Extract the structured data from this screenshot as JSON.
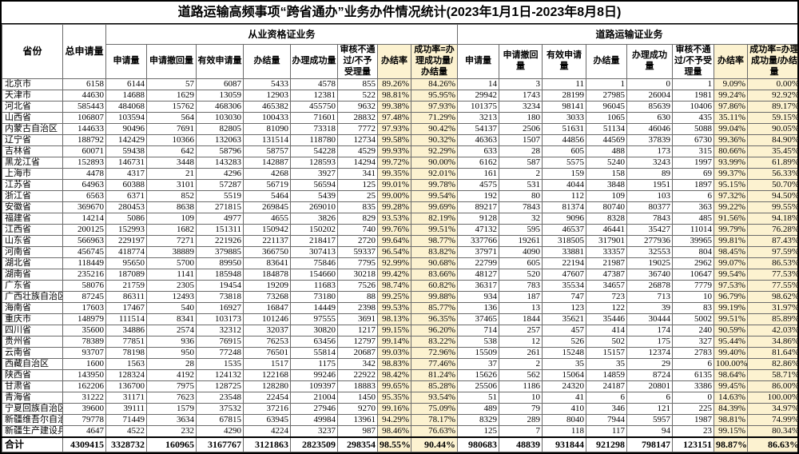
{
  "title": "道路运输高频事项“跨省通办”业务办件情况统计(2023年1月1日-2023年8月8日)",
  "colors": {
    "highlight": "#fcf2d0",
    "grid": "#6b6b6b",
    "outer_border": "#000000"
  },
  "header": {
    "province": "省份",
    "total": "总申请量",
    "group_left": "从业资格证业务",
    "group_right": "道路运输证业务",
    "sub": [
      "申请量",
      "申请撤回量",
      "有效申请量",
      "办结量",
      "办理成功量",
      "审核不通过/不予受理量",
      "办结率",
      "成功率=办理成功量/办结量"
    ]
  },
  "rows": [
    {
      "province": "北京市",
      "total": "6158",
      "qualification": [
        "6144",
        "57",
        "6087",
        "5433",
        "4578",
        "855",
        "89.26%",
        "84.26%"
      ],
      "transport": [
        "14",
        "3",
        "11",
        "1",
        "0",
        "1",
        "9.09%",
        "0.00%"
      ]
    },
    {
      "province": "天津市",
      "total": "44630",
      "qualification": [
        "14688",
        "1629",
        "13059",
        "12903",
        "12381",
        "522",
        "98.81%",
        "95.95%"
      ],
      "transport": [
        "29942",
        "1743",
        "28199",
        "27985",
        "26004",
        "1981",
        "99.24%",
        "92.92%"
      ]
    },
    {
      "province": "河北省",
      "total": "585443",
      "qualification": [
        "484068",
        "15762",
        "468306",
        "465382",
        "455750",
        "9632",
        "99.38%",
        "97.93%"
      ],
      "transport": [
        "101375",
        "3234",
        "98141",
        "96045",
        "85639",
        "10406",
        "97.86%",
        "89.17%"
      ]
    },
    {
      "province": "山西省",
      "total": "106807",
      "qualification": [
        "103594",
        "564",
        "103030",
        "100433",
        "71601",
        "28832",
        "97.48%",
        "71.29%"
      ],
      "transport": [
        "3213",
        "180",
        "3033",
        "1065",
        "630",
        "435",
        "35.11%",
        "59.15%"
      ]
    },
    {
      "province": "内蒙古自治区",
      "total": "144633",
      "qualification": [
        "90496",
        "7691",
        "82805",
        "81090",
        "73318",
        "7772",
        "97.93%",
        "90.42%"
      ],
      "transport": [
        "54137",
        "2506",
        "51631",
        "51134",
        "46046",
        "5088",
        "99.04%",
        "90.05%"
      ]
    },
    {
      "province": "辽宁省",
      "total": "188792",
      "qualification": [
        "142429",
        "10366",
        "132063",
        "131514",
        "118780",
        "12734",
        "99.58%",
        "90.32%"
      ],
      "transport": [
        "46363",
        "1507",
        "44856",
        "44569",
        "37839",
        "6730",
        "99.36%",
        "84.90%"
      ]
    },
    {
      "province": "吉林省",
      "total": "60071",
      "qualification": [
        "59438",
        "642",
        "58796",
        "58757",
        "54228",
        "4529",
        "99.93%",
        "92.29%"
      ],
      "transport": [
        "633",
        "28",
        "605",
        "488",
        "173",
        "315",
        "80.66%",
        "35.45%"
      ]
    },
    {
      "province": "黑龙江省",
      "total": "152893",
      "qualification": [
        "146731",
        "3448",
        "143283",
        "142887",
        "128593",
        "14294",
        "99.72%",
        "90.00%"
      ],
      "transport": [
        "6162",
        "587",
        "5575",
        "5240",
        "3243",
        "1997",
        "93.99%",
        "61.89%"
      ]
    },
    {
      "province": "上海市",
      "total": "4478",
      "qualification": [
        "4317",
        "21",
        "4296",
        "4268",
        "3927",
        "341",
        "99.35%",
        "92.01%"
      ],
      "transport": [
        "161",
        "2",
        "159",
        "158",
        "89",
        "69",
        "99.37%",
        "56.33%"
      ]
    },
    {
      "province": "江苏省",
      "total": "64963",
      "qualification": [
        "60388",
        "3101",
        "57287",
        "56719",
        "56594",
        "125",
        "99.01%",
        "99.78%"
      ],
      "transport": [
        "4575",
        "531",
        "4044",
        "3848",
        "1951",
        "1897",
        "95.15%",
        "50.70%"
      ]
    },
    {
      "province": "浙江省",
      "total": "6563",
      "qualification": [
        "6371",
        "852",
        "5519",
        "5464",
        "5439",
        "25",
        "99.00%",
        "99.54%"
      ],
      "transport": [
        "192",
        "80",
        "112",
        "109",
        "103",
        "6",
        "97.32%",
        "94.50%"
      ]
    },
    {
      "province": "安徽省",
      "total": "369670",
      "qualification": [
        "280453",
        "8638",
        "271815",
        "269845",
        "269010",
        "835",
        "99.28%",
        "99.69%"
      ],
      "transport": [
        "89217",
        "7843",
        "81374",
        "80740",
        "80377",
        "363",
        "99.22%",
        "99.55%"
      ]
    },
    {
      "province": "福建省",
      "total": "14214",
      "qualification": [
        "5086",
        "109",
        "4977",
        "4655",
        "3826",
        "829",
        "93.53%",
        "82.19%"
      ],
      "transport": [
        "9128",
        "32",
        "9096",
        "8328",
        "7843",
        "485",
        "91.56%",
        "94.18%"
      ]
    },
    {
      "province": "江西省",
      "total": "200125",
      "qualification": [
        "152993",
        "1682",
        "151311",
        "150942",
        "150202",
        "740",
        "99.76%",
        "99.51%"
      ],
      "transport": [
        "47132",
        "595",
        "46537",
        "46441",
        "35427",
        "11014",
        "99.79%",
        "76.28%"
      ]
    },
    {
      "province": "山东省",
      "total": "566963",
      "qualification": [
        "229197",
        "7271",
        "221926",
        "221137",
        "218417",
        "2720",
        "99.64%",
        "98.77%"
      ],
      "transport": [
        "337766",
        "19261",
        "318505",
        "317901",
        "277936",
        "39965",
        "99.81%",
        "87.43%"
      ]
    },
    {
      "province": "河南省",
      "total": "456745",
      "qualification": [
        "418774",
        "38889",
        "379885",
        "366750",
        "307413",
        "59337",
        "96.54%",
        "83.82%"
      ],
      "transport": [
        "37971",
        "4090",
        "33881",
        "33357",
        "32553",
        "804",
        "98.45%",
        "97.59%"
      ]
    },
    {
      "province": "湖北省",
      "total": "118449",
      "qualification": [
        "95650",
        "5700",
        "89950",
        "83641",
        "75846",
        "7795",
        "92.99%",
        "90.68%"
      ],
      "transport": [
        "22799",
        "605",
        "22194",
        "21987",
        "19025",
        "2962",
        "99.07%",
        "86.53%"
      ]
    },
    {
      "province": "湖南省",
      "total": "235216",
      "qualification": [
        "187089",
        "1141",
        "185948",
        "184878",
        "154660",
        "30218",
        "99.42%",
        "83.66%"
      ],
      "transport": [
        "48127",
        "520",
        "47607",
        "47387",
        "36740",
        "10647",
        "99.54%",
        "77.53%"
      ]
    },
    {
      "province": "广东省",
      "total": "58076",
      "qualification": [
        "21759",
        "2305",
        "19454",
        "19209",
        "11683",
        "7526",
        "98.74%",
        "60.82%"
      ],
      "transport": [
        "36317",
        "783",
        "35534",
        "34657",
        "26878",
        "7779",
        "97.53%",
        "77.55%"
      ]
    },
    {
      "province": "广西壮族自治区",
      "total": "87245",
      "qualification": [
        "86311",
        "12493",
        "73818",
        "73268",
        "73180",
        "88",
        "99.25%",
        "99.88%"
      ],
      "transport": [
        "934",
        "187",
        "747",
        "723",
        "713",
        "10",
        "96.79%",
        "98.62%"
      ]
    },
    {
      "province": "海南省",
      "total": "17603",
      "qualification": [
        "17467",
        "540",
        "16927",
        "16847",
        "14449",
        "2398",
        "99.53%",
        "85.77%"
      ],
      "transport": [
        "136",
        "13",
        "123",
        "122",
        "39",
        "83",
        "99.19%",
        "31.97%"
      ]
    },
    {
      "province": "重庆市",
      "total": "148979",
      "qualification": [
        "111514",
        "8341",
        "103173",
        "101246",
        "97555",
        "3691",
        "98.13%",
        "96.35%"
      ],
      "transport": [
        "37465",
        "1844",
        "35621",
        "35446",
        "30444",
        "5002",
        "99.51%",
        "85.89%"
      ]
    },
    {
      "province": "四川省",
      "total": "35600",
      "qualification": [
        "34886",
        "2574",
        "32312",
        "32037",
        "30820",
        "1217",
        "99.15%",
        "96.20%"
      ],
      "transport": [
        "714",
        "257",
        "457",
        "414",
        "174",
        "240",
        "90.59%",
        "42.03%"
      ]
    },
    {
      "province": "贵州省",
      "total": "78389",
      "qualification": [
        "77851",
        "936",
        "76915",
        "76253",
        "63456",
        "12797",
        "99.14%",
        "83.22%"
      ],
      "transport": [
        "538",
        "12",
        "526",
        "502",
        "175",
        "327",
        "95.44%",
        "34.86%"
      ]
    },
    {
      "province": "云南省",
      "total": "93707",
      "qualification": [
        "78198",
        "950",
        "77248",
        "76501",
        "55814",
        "20687",
        "99.03%",
        "72.96%"
      ],
      "transport": [
        "15509",
        "261",
        "15248",
        "15157",
        "12374",
        "2783",
        "99.40%",
        "81.64%"
      ]
    },
    {
      "province": "西藏自治区",
      "total": "1600",
      "qualification": [
        "1563",
        "28",
        "1535",
        "1517",
        "1175",
        "342",
        "98.83%",
        "77.46%"
      ],
      "transport": [
        "37",
        "2",
        "35",
        "35",
        "29",
        "6",
        "100.00%",
        "82.86%"
      ]
    },
    {
      "province": "陕西省",
      "total": "143950",
      "qualification": [
        "128324",
        "4192",
        "124132",
        "122168",
        "99246",
        "22922",
        "98.42%",
        "81.24%"
      ],
      "transport": [
        "15626",
        "562",
        "15064",
        "14859",
        "8724",
        "6135",
        "98.64%",
        "58.71%"
      ]
    },
    {
      "province": "甘肃省",
      "total": "162206",
      "qualification": [
        "136700",
        "7975",
        "128725",
        "128280",
        "109397",
        "18883",
        "99.65%",
        "85.28%"
      ],
      "transport": [
        "25506",
        "1186",
        "24320",
        "24187",
        "20801",
        "3386",
        "99.45%",
        "86.00%"
      ]
    },
    {
      "province": "青海省",
      "total": "31222",
      "qualification": [
        "31171",
        "7623",
        "23548",
        "22454",
        "21004",
        "1450",
        "95.35%",
        "93.54%"
      ],
      "transport": [
        "51",
        "10",
        "41",
        "6",
        "6",
        "0",
        "14.63%",
        "100.00%"
      ]
    },
    {
      "province": "宁夏回族自治区",
      "total": "39600",
      "qualification": [
        "39111",
        "1579",
        "37532",
        "37216",
        "27946",
        "9270",
        "99.16%",
        "75.09%"
      ],
      "transport": [
        "489",
        "79",
        "410",
        "346",
        "121",
        "225",
        "84.39%",
        "34.97%"
      ]
    },
    {
      "province": "新疆维吾尔自治区",
      "total": "79778",
      "qualification": [
        "71449",
        "3634",
        "67815",
        "63945",
        "49984",
        "13961",
        "94.29%",
        "78.17%"
      ],
      "transport": [
        "8329",
        "289",
        "8040",
        "7944",
        "5957",
        "1987",
        "98.81%",
        "74.99%"
      ]
    },
    {
      "province": "新疆生产建设兵团",
      "total": "4647",
      "qualification": [
        "4522",
        "232",
        "4290",
        "4224",
        "3237",
        "987",
        "98.46%",
        "76.63%"
      ],
      "transport": [
        "125",
        "7",
        "118",
        "117",
        "94",
        "23",
        "99.15%",
        "80.34%"
      ]
    }
  ],
  "footer": {
    "province": "合计",
    "total": "4309415",
    "qualification": [
      "3328732",
      "160965",
      "3167767",
      "3121863",
      "2823509",
      "298354",
      "98.55%",
      "90.44%"
    ],
    "transport": [
      "980683",
      "48839",
      "931844",
      "921298",
      "798147",
      "123151",
      "98.87%",
      "86.63%"
    ]
  }
}
